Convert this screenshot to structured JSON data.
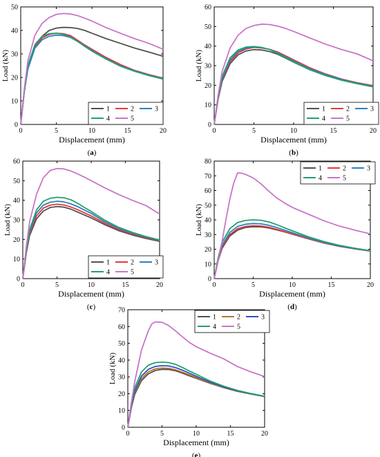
{
  "chart_data": [
    {
      "type": "line",
      "panel_label": "(a)",
      "xlabel": "Displacement (mm)",
      "ylabel": "Load (kN)",
      "xlim": [
        0,
        20
      ],
      "ylim": [
        0,
        50
      ],
      "xticks": [
        0,
        5,
        10,
        15,
        20
      ],
      "yticks": [
        0,
        10,
        20,
        30,
        40,
        50
      ],
      "legend_position": "bottom-right",
      "legend_columns": 3,
      "series": [
        {
          "name": "1",
          "color": "#505050",
          "x": [
            0,
            0.5,
            1,
            2,
            3,
            4,
            5,
            6,
            7,
            8,
            9,
            10,
            12,
            14,
            16,
            18,
            20
          ],
          "y": [
            0,
            14,
            24,
            33,
            37.5,
            40,
            41,
            41.3,
            41.2,
            40.8,
            40,
            38.8,
            36.5,
            34.5,
            32.5,
            30.8,
            29
          ]
        },
        {
          "name": "2",
          "color": "#e8373a",
          "x": [
            0,
            0.5,
            1,
            2,
            3,
            4,
            5,
            6,
            7,
            8,
            9,
            10,
            12,
            14,
            16,
            18,
            20
          ],
          "y": [
            0,
            14,
            24,
            33,
            36.8,
            38.3,
            38.8,
            38.6,
            37.8,
            35.8,
            33.8,
            32,
            28.5,
            25.5,
            23,
            21.2,
            19.7
          ]
        },
        {
          "name": "3",
          "color": "#2f7fc0",
          "x": [
            0,
            0.5,
            1,
            2,
            3,
            4,
            5,
            6,
            7,
            8,
            9,
            10,
            12,
            14,
            16,
            18,
            20
          ],
          "y": [
            0,
            14,
            23.5,
            32.5,
            36,
            37.5,
            38,
            37.8,
            37,
            35.3,
            33.5,
            31.5,
            28,
            25,
            22.8,
            21,
            19.5
          ]
        },
        {
          "name": "4",
          "color": "#20a070",
          "x": [
            0,
            0.5,
            1,
            2,
            3,
            4,
            5,
            6,
            7,
            8,
            9,
            10,
            12,
            14,
            16,
            18,
            20
          ],
          "y": [
            0,
            14.5,
            25,
            34,
            37.5,
            38.6,
            38.8,
            38.3,
            37.3,
            35.3,
            33.2,
            31.2,
            27.8,
            24.8,
            22.6,
            20.8,
            19.3
          ]
        },
        {
          "name": "5",
          "color": "#c875c8",
          "x": [
            0,
            0.5,
            1,
            2,
            3,
            4,
            5,
            6,
            7,
            8,
            9,
            10,
            12,
            14,
            16,
            18,
            20
          ],
          "y": [
            0,
            15,
            27,
            38,
            43,
            45.5,
            46.8,
            47.2,
            47,
            46.3,
            45.2,
            44,
            41.2,
            38.8,
            36.5,
            34.5,
            32
          ]
        }
      ]
    },
    {
      "type": "line",
      "panel_label": "(b)",
      "xlabel": "Displacement (mm)",
      "ylabel": "Load (kN)",
      "xlim": [
        0,
        20
      ],
      "ylim": [
        0,
        60
      ],
      "xticks": [
        0,
        5,
        10,
        15,
        20
      ],
      "yticks": [
        0,
        10,
        20,
        30,
        40,
        50,
        60
      ],
      "legend_position": "bottom-right",
      "legend_columns": 3,
      "series": [
        {
          "name": "1",
          "color": "#505050",
          "x": [
            0,
            0.5,
            1,
            2,
            3,
            4,
            5,
            6,
            7,
            8,
            9,
            10,
            12,
            14,
            16,
            18,
            20
          ],
          "y": [
            0,
            13,
            22,
            31,
            35.5,
            37.5,
            38.2,
            38,
            37.2,
            35.8,
            33.8,
            31.8,
            28,
            25,
            22.8,
            21,
            19.5
          ]
        },
        {
          "name": "2",
          "color": "#e8373a",
          "x": [
            0,
            0.5,
            1,
            2,
            3,
            4,
            5,
            6,
            7,
            8,
            9,
            10,
            12,
            14,
            16,
            18,
            20
          ],
          "y": [
            0,
            13.5,
            23,
            32,
            36.5,
            38.5,
            39.3,
            39,
            38.3,
            37,
            35,
            33,
            29,
            25.8,
            23.2,
            21.3,
            19.8
          ]
        },
        {
          "name": "3",
          "color": "#2f7fc0",
          "x": [
            0,
            0.5,
            1,
            2,
            3,
            4,
            5,
            6,
            7,
            8,
            9,
            10,
            12,
            14,
            16,
            18,
            20
          ],
          "y": [
            0,
            14,
            23.5,
            33,
            37.3,
            39,
            39.5,
            39.2,
            38.3,
            36.5,
            34.5,
            32.5,
            28.5,
            25.5,
            23,
            21,
            19.5
          ]
        },
        {
          "name": "4",
          "color": "#20a070",
          "x": [
            0,
            0.5,
            1,
            2,
            3,
            4,
            5,
            6,
            7,
            8,
            9,
            10,
            12,
            14,
            16,
            18,
            20
          ],
          "y": [
            0,
            14.5,
            24.5,
            34,
            38,
            39.5,
            39.8,
            39.3,
            38.2,
            36.2,
            34,
            32,
            28,
            25,
            22.6,
            20.8,
            19.2
          ]
        },
        {
          "name": "5",
          "color": "#c875c8",
          "x": [
            0,
            0.5,
            1,
            2,
            3,
            4,
            5,
            6,
            7,
            8,
            9,
            10,
            12,
            14,
            16,
            18,
            20
          ],
          "y": [
            0,
            15,
            27,
            39,
            45.5,
            49,
            50.5,
            51.2,
            51,
            50.2,
            49,
            47.5,
            44.2,
            41,
            38.3,
            36,
            32.5
          ]
        }
      ]
    },
    {
      "type": "line",
      "panel_label": "(c)",
      "xlabel": "Displacement (mm)",
      "ylabel": "Load (kN)",
      "xlim": [
        0,
        20
      ],
      "ylim": [
        0,
        60
      ],
      "xticks": [
        0,
        5,
        10,
        15,
        20
      ],
      "yticks": [
        0,
        10,
        20,
        30,
        40,
        50,
        60
      ],
      "legend_position": "bottom-right",
      "legend_columns": 3,
      "series": [
        {
          "name": "1",
          "color": "#505050",
          "x": [
            0,
            0.5,
            1,
            2,
            3,
            4,
            5,
            6,
            7,
            8,
            9,
            10,
            12,
            14,
            16,
            18,
            20
          ],
          "y": [
            0,
            13,
            22,
            30.5,
            34.5,
            36.3,
            36.8,
            36.5,
            35.5,
            34,
            32.5,
            31,
            27.5,
            24.5,
            22.3,
            20.5,
            19
          ]
        },
        {
          "name": "2",
          "color": "#e8373a",
          "x": [
            0,
            0.5,
            1,
            2,
            3,
            4,
            5,
            6,
            7,
            8,
            9,
            10,
            12,
            14,
            16,
            18,
            20
          ],
          "y": [
            0,
            13.5,
            23,
            32,
            36,
            37.5,
            38,
            37.6,
            36.6,
            35.2,
            33.6,
            32,
            28.2,
            25,
            22.8,
            21,
            19.3
          ]
        },
        {
          "name": "3",
          "color": "#2f7fc0",
          "x": [
            0,
            0.5,
            1,
            2,
            3,
            4,
            5,
            6,
            7,
            8,
            9,
            10,
            12,
            14,
            16,
            18,
            20
          ],
          "y": [
            0,
            14,
            24,
            33.5,
            37.5,
            39,
            39.5,
            39.2,
            38.2,
            36.8,
            35,
            33.3,
            29,
            25.6,
            23.2,
            21.3,
            19.5
          ]
        },
        {
          "name": "4",
          "color": "#20a070",
          "x": [
            0,
            0.5,
            1,
            2,
            3,
            4,
            5,
            6,
            7,
            8,
            9,
            10,
            12,
            14,
            16,
            18,
            20
          ],
          "y": [
            0,
            14.5,
            25,
            35,
            39.5,
            41,
            41.5,
            41.3,
            40.3,
            38.5,
            36.3,
            34.3,
            29.8,
            26.2,
            23.6,
            21.5,
            19.7
          ]
        },
        {
          "name": "5",
          "color": "#c875c8",
          "x": [
            0,
            0.5,
            1,
            2,
            3,
            4,
            5,
            6,
            7,
            8,
            9,
            10,
            12,
            14,
            16,
            18,
            20
          ],
          "y": [
            0,
            16,
            29,
            43,
            51.5,
            55.2,
            56.2,
            56,
            55,
            53.5,
            51.8,
            50,
            46.3,
            43,
            40,
            37.3,
            33
          ]
        }
      ]
    },
    {
      "type": "line",
      "panel_label": "(d)",
      "xlabel": "Displacement (mm)",
      "ylabel": "Load (kN)",
      "xlim": [
        0,
        20
      ],
      "ylim": [
        0,
        80
      ],
      "xticks": [
        0,
        5,
        10,
        15,
        20
      ],
      "yticks": [
        0,
        10,
        20,
        30,
        40,
        50,
        60,
        70,
        80
      ],
      "legend_position": "top-right",
      "legend_columns": 3,
      "series": [
        {
          "name": "1",
          "color": "#505050",
          "x": [
            0,
            0.5,
            1,
            2,
            3,
            4,
            5,
            6,
            7,
            8,
            9,
            10,
            12,
            14,
            16,
            18,
            20
          ],
          "y": [
            0,
            12,
            20.5,
            29,
            33,
            34.8,
            35.3,
            35.2,
            34.5,
            33.2,
            31.8,
            30.3,
            27.2,
            24.3,
            22,
            20.3,
            18.8
          ]
        },
        {
          "name": "2",
          "color": "#e8373a",
          "x": [
            0,
            0.5,
            1,
            2,
            3,
            4,
            5,
            6,
            7,
            8,
            9,
            10,
            12,
            14,
            16,
            18,
            20
          ],
          "y": [
            0,
            12.5,
            21.5,
            30,
            34,
            35.5,
            36,
            35.8,
            35,
            33.6,
            32,
            30.5,
            27.3,
            24.4,
            22.1,
            20.3,
            18.8
          ]
        },
        {
          "name": "3",
          "color": "#2f7fc0",
          "x": [
            0,
            0.5,
            1,
            2,
            3,
            4,
            5,
            6,
            7,
            8,
            9,
            10,
            12,
            14,
            16,
            18,
            20
          ],
          "y": [
            0,
            13,
            22.5,
            31.5,
            35.5,
            37,
            37.5,
            37.3,
            36.3,
            34.8,
            33,
            31.3,
            27.8,
            24.7,
            22.3,
            20.5,
            18.9
          ]
        },
        {
          "name": "4",
          "color": "#20a070",
          "x": [
            0,
            0.5,
            1,
            2,
            3,
            4,
            5,
            6,
            7,
            8,
            9,
            10,
            12,
            14,
            16,
            18,
            20
          ],
          "y": [
            0,
            14,
            24.5,
            34,
            38.2,
            39.6,
            40,
            39.7,
            38.6,
            36.8,
            34.6,
            32.6,
            28.6,
            25.3,
            22.7,
            20.7,
            19
          ]
        },
        {
          "name": "5",
          "color": "#c875c8",
          "x": [
            0,
            0.5,
            1,
            1.5,
            2,
            2.5,
            3,
            3.5,
            4,
            5,
            6,
            7,
            8,
            9,
            10,
            12,
            14,
            16,
            18,
            20
          ],
          "y": [
            0,
            12,
            25,
            40,
            54,
            65,
            72,
            71.8,
            71,
            68.5,
            64.5,
            59.5,
            55,
            51.5,
            48.5,
            44,
            39.5,
            35.8,
            33,
            30.5
          ]
        }
      ]
    },
    {
      "type": "line",
      "panel_label": "(e)",
      "xlabel": "Displacement (mm)",
      "ylabel": "Load (kN)",
      "xlim": [
        0,
        20
      ],
      "ylim": [
        0,
        70
      ],
      "xticks": [
        0,
        5,
        10,
        15,
        20
      ],
      "yticks": [
        0,
        10,
        20,
        30,
        40,
        50,
        60,
        70
      ],
      "legend_position": "top-right",
      "legend_columns": 3,
      "series": [
        {
          "name": "1",
          "color": "#505050",
          "x": [
            0,
            0.5,
            1,
            2,
            3,
            4,
            5,
            6,
            7,
            8,
            9,
            10,
            12,
            14,
            16,
            18,
            20
          ],
          "y": [
            0,
            11.5,
            19.5,
            27.8,
            31.8,
            33.8,
            34.5,
            34.4,
            33.6,
            32.2,
            30.6,
            29.2,
            26.2,
            23.6,
            21.4,
            19.8,
            18.3
          ]
        },
        {
          "name": "2",
          "color": "#b8732e",
          "x": [
            0,
            0.5,
            1,
            2,
            3,
            4,
            5,
            6,
            7,
            8,
            9,
            10,
            12,
            14,
            16,
            18,
            20
          ],
          "y": [
            0,
            12,
            20.5,
            29,
            33,
            34.8,
            35.3,
            35.1,
            34.2,
            32.8,
            31.2,
            29.6,
            26.4,
            23.7,
            21.5,
            19.8,
            18.3
          ]
        },
        {
          "name": "3",
          "color": "#2f4fc0",
          "x": [
            0,
            0.5,
            1,
            2,
            3,
            4,
            5,
            6,
            7,
            8,
            9,
            10,
            12,
            14,
            16,
            18,
            20
          ],
          "y": [
            0,
            12.5,
            21.5,
            30.5,
            34.5,
            36.2,
            36.7,
            36.5,
            35.5,
            34,
            32.2,
            30.4,
            26.9,
            24,
            21.7,
            19.9,
            18.4
          ]
        },
        {
          "name": "4",
          "color": "#20a070",
          "x": [
            0,
            0.5,
            1,
            2,
            3,
            4,
            5,
            6,
            7,
            8,
            9,
            10,
            12,
            14,
            16,
            18,
            20
          ],
          "y": [
            0,
            14,
            23.5,
            33,
            37,
            38.5,
            38.8,
            38.5,
            37.4,
            35.6,
            33.5,
            31.6,
            27.6,
            24.5,
            22,
            20.1,
            18.5
          ]
        },
        {
          "name": "5",
          "color": "#c875c8",
          "x": [
            0,
            0.5,
            1,
            2,
            3,
            3.5,
            4,
            5,
            6,
            7,
            8,
            9,
            10,
            12,
            14,
            16,
            18,
            20
          ],
          "y": [
            0,
            14,
            27,
            46,
            57.5,
            61.5,
            62.8,
            62.5,
            60.5,
            57.3,
            53.8,
            50.5,
            48,
            44.2,
            40.8,
            36.2,
            33,
            30.2
          ]
        }
      ]
    }
  ]
}
